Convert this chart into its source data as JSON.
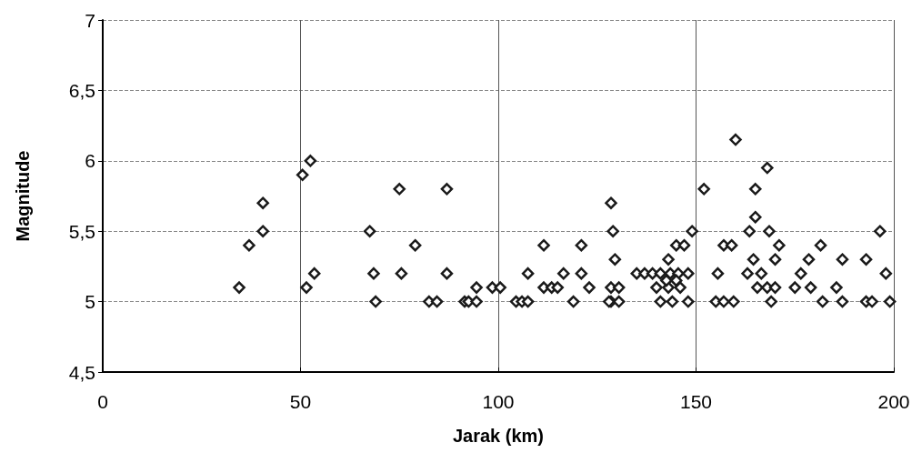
{
  "chart_data": {
    "type": "scatter",
    "xlabel": "Jarak (km)",
    "ylabel": "Magnitude",
    "marker": "diamond",
    "grid": true,
    "xlim": [
      0,
      200
    ],
    "xticks": [
      0,
      50,
      100,
      150,
      200
    ],
    "ylim": [
      4.5,
      7
    ],
    "yticks": [
      {
        "value": 4.5,
        "label": "4,5"
      },
      5,
      {
        "value": 5.5,
        "label": "5,5"
      },
      6,
      {
        "value": 6.5,
        "label": "6,5"
      },
      7
    ],
    "series": [
      {
        "color": "#1a1a1a",
        "x": [
          34.5,
          37,
          40.5,
          40.5,
          50.5,
          52.5,
          51.5,
          53.5,
          75,
          87,
          67.5,
          79,
          68.5,
          75.5,
          87,
          69,
          82.5,
          84.5,
          91.5,
          92.5,
          94.5,
          94.5,
          98.5,
          100.5,
          104.5,
          106,
          107.5,
          107.5,
          111.5,
          111.5,
          113.5,
          115,
          116.5,
          121,
          121,
          123,
          119,
          128.5,
          129,
          129.5,
          128.5,
          128.5,
          135,
          137,
          139,
          141,
          143.5,
          145.5,
          148,
          143,
          145,
          147,
          149,
          140,
          143,
          146,
          142.5,
          145,
          141,
          144,
          148,
          128,
          130.5,
          130.5,
          152,
          168,
          165,
          165,
          163.5,
          168.5,
          157,
          159,
          171,
          181.5,
          196.5,
          164.5,
          170,
          178.5,
          187,
          193,
          155.5,
          163,
          166.5,
          176.5,
          198,
          165.5,
          168,
          170,
          175,
          179,
          185.5,
          155,
          157,
          159.5,
          169,
          182,
          187,
          193,
          194.5,
          199,
          160
        ],
        "values": [
          5.1,
          5.4,
          5.7,
          5.5,
          5.9,
          6,
          5.1,
          5.2,
          5.8,
          5.8,
          5.5,
          5.4,
          5.2,
          5.2,
          5.2,
          5,
          5,
          5,
          5,
          5,
          5,
          5.1,
          5.1,
          5.1,
          5,
          5,
          5,
          5.2,
          5.4,
          5.1,
          5.1,
          5.1,
          5.2,
          5.4,
          5.2,
          5.1,
          5,
          5.7,
          5.5,
          5.3,
          5.1,
          5,
          5.2,
          5.2,
          5.2,
          5.2,
          5.2,
          5.2,
          5.2,
          5.3,
          5.4,
          5.4,
          5.5,
          5.1,
          5.1,
          5.1,
          5.15,
          5.15,
          5,
          5,
          5,
          5,
          5.1,
          5,
          5.8,
          5.95,
          5.8,
          5.6,
          5.5,
          5.5,
          5.4,
          5.4,
          5.4,
          5.4,
          5.5,
          5.3,
          5.3,
          5.3,
          5.3,
          5.3,
          5.2,
          5.2,
          5.2,
          5.2,
          5.2,
          5.1,
          5.1,
          5.1,
          5.1,
          5.1,
          5.1,
          5,
          5,
          5,
          5,
          5,
          5,
          5,
          5,
          5,
          6.15
        ]
      }
    ]
  }
}
